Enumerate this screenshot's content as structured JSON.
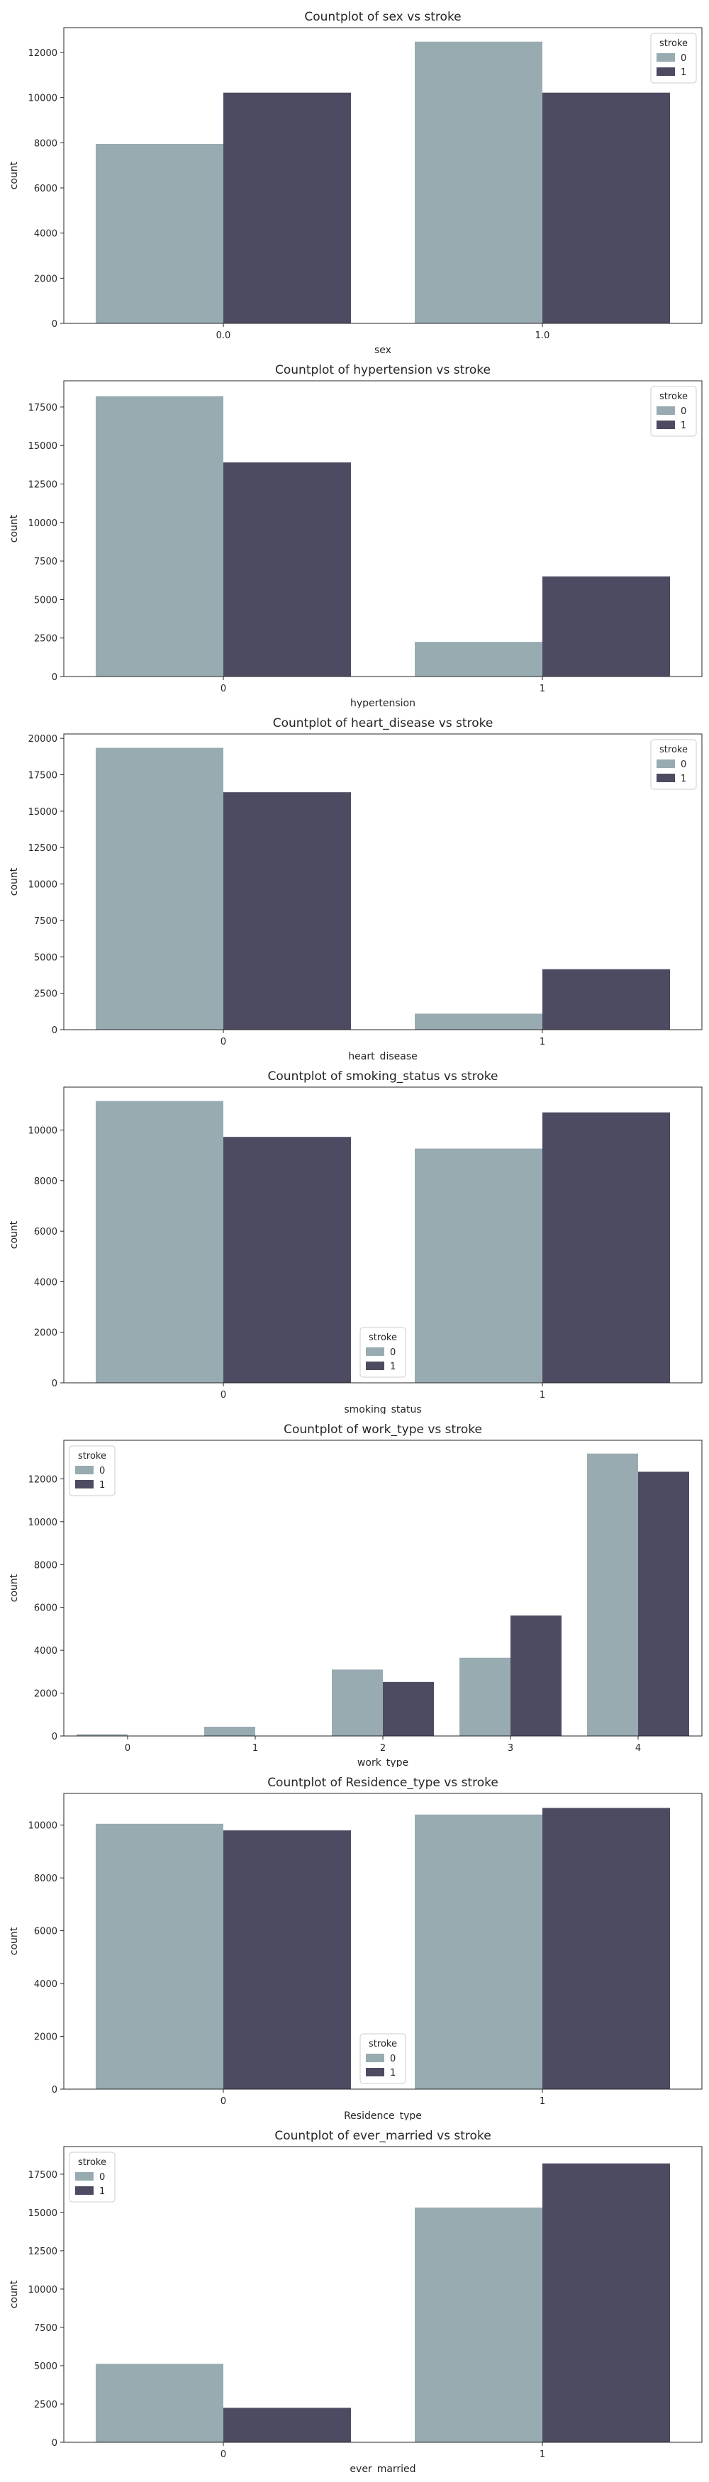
{
  "colors": {
    "class_0": "#98abb1",
    "class_1": "#4d4b62",
    "axis": "#262626",
    "legend_border": "#cccccc"
  },
  "chart_data": [
    {
      "type": "bar",
      "title": "Countplot of sex vs stroke",
      "xlabel": "sex",
      "ylabel": "count",
      "categories": [
        "0.0",
        "1.0"
      ],
      "yticks": [
        0,
        2000,
        4000,
        6000,
        8000,
        10000,
        12000
      ],
      "ylim": [
        0,
        13100
      ],
      "legend": {
        "title": "stroke",
        "placement": "upper right"
      },
      "series": [
        {
          "name": "0",
          "values": [
            7950,
            12480
          ]
        },
        {
          "name": "1",
          "values": [
            10220,
            10220
          ]
        }
      ]
    },
    {
      "type": "bar",
      "title": "Countplot of hypertension vs stroke",
      "xlabel": "hypertension",
      "ylabel": "count",
      "categories": [
        "0",
        "1"
      ],
      "yticks": [
        0,
        2500,
        5000,
        7500,
        10000,
        12500,
        15000,
        17500
      ],
      "ylim": [
        0,
        19200
      ],
      "legend": {
        "title": "stroke",
        "placement": "upper right"
      },
      "series": [
        {
          "name": "0",
          "values": [
            18200,
            2250
          ]
        },
        {
          "name": "1",
          "values": [
            13900,
            6500
          ]
        }
      ]
    },
    {
      "type": "bar",
      "title": "Countplot of heart_disease vs stroke",
      "xlabel": "heart_disease",
      "ylabel": "count",
      "categories": [
        "0",
        "1"
      ],
      "yticks": [
        0,
        2500,
        5000,
        7500,
        10000,
        12500,
        15000,
        17500,
        20000
      ],
      "ylim": [
        0,
        20300
      ],
      "legend": {
        "title": "stroke",
        "placement": "upper right"
      },
      "series": [
        {
          "name": "0",
          "values": [
            19350,
            1100
          ]
        },
        {
          "name": "1",
          "values": [
            16300,
            4150
          ]
        }
      ]
    },
    {
      "type": "bar",
      "title": "Countplot of smoking_status vs stroke",
      "xlabel": "smoking_status",
      "ylabel": "count",
      "categories": [
        "0",
        "1"
      ],
      "yticks": [
        0,
        2000,
        4000,
        6000,
        8000,
        10000
      ],
      "ylim": [
        0,
        11700
      ],
      "legend": {
        "title": "stroke",
        "placement": "lower center"
      },
      "series": [
        {
          "name": "0",
          "values": [
            11150,
            9270
          ]
        },
        {
          "name": "1",
          "values": [
            9730,
            10700
          ]
        }
      ]
    },
    {
      "type": "bar",
      "title": "Countplot of work_type vs stroke",
      "xlabel": "work_type",
      "ylabel": "count",
      "categories": [
        "0",
        "1",
        "2",
        "3",
        "4"
      ],
      "yticks": [
        0,
        2000,
        4000,
        6000,
        8000,
        10000,
        12000
      ],
      "ylim": [
        0,
        13800
      ],
      "legend": {
        "title": "stroke",
        "placement": "upper left"
      },
      "series": [
        {
          "name": "0",
          "values": [
            80,
            430,
            3100,
            3650,
            13180
          ]
        },
        {
          "name": "1",
          "values": [
            0,
            0,
            2520,
            5620,
            12330
          ]
        }
      ]
    },
    {
      "type": "bar",
      "title": "Countplot of Residence_type vs stroke",
      "xlabel": "Residence_type",
      "ylabel": "count",
      "categories": [
        "0",
        "1"
      ],
      "yticks": [
        0,
        2000,
        4000,
        6000,
        8000,
        10000
      ],
      "ylim": [
        0,
        11200
      ],
      "legend": {
        "title": "stroke",
        "placement": "lower center"
      },
      "series": [
        {
          "name": "0",
          "values": [
            10050,
            10400
          ]
        },
        {
          "name": "1",
          "values": [
            9800,
            10650
          ]
        }
      ]
    },
    {
      "type": "bar",
      "title": "Countplot of ever_married vs stroke",
      "xlabel": "ever_married",
      "ylabel": "count",
      "categories": [
        "0",
        "1"
      ],
      "yticks": [
        0,
        2500,
        5000,
        7500,
        10000,
        12500,
        15000,
        17500
      ],
      "ylim": [
        0,
        19300
      ],
      "legend": {
        "title": "stroke",
        "placement": "upper left"
      },
      "series": [
        {
          "name": "0",
          "values": [
            5120,
            15320
          ]
        },
        {
          "name": "1",
          "values": [
            2250,
            18200
          ]
        }
      ]
    }
  ]
}
